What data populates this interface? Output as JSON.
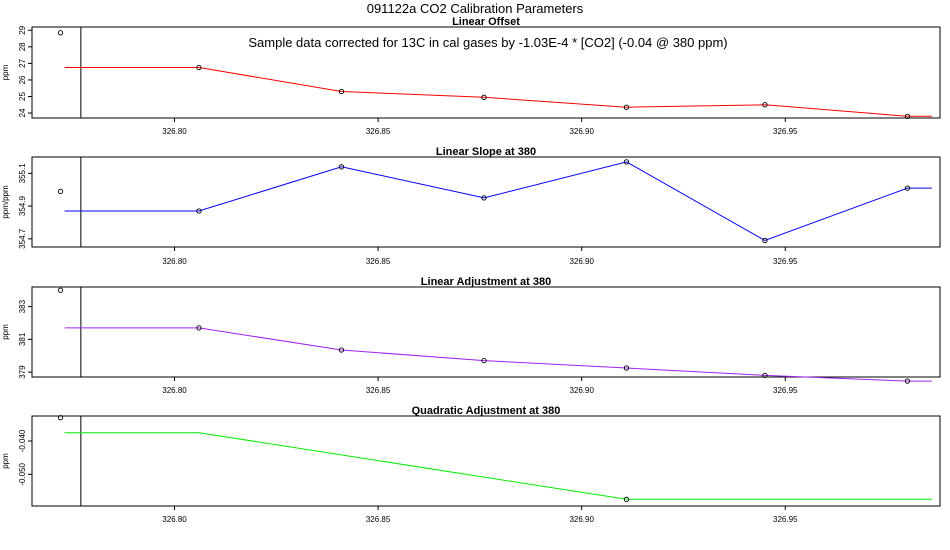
{
  "figure": {
    "title": "091122a   CO2 Calibration Parameters"
  },
  "chart_data": [
    {
      "type": "line",
      "title": "Linear Offset",
      "annotation": "Sample data corrected for 13C in cal gases by -1.03E-4 * [CO2] (-0.04 @ 380 ppm)",
      "ylabel": "ppm",
      "color": "#ff0000",
      "xlim": [
        326.765,
        326.988
      ],
      "ylim": [
        23.7,
        29.2
      ],
      "yticks": [
        24,
        25,
        26,
        27,
        28,
        29
      ],
      "xticks": [
        326.8,
        326.85,
        326.9,
        326.95
      ],
      "xtick_labels": [
        "326.80",
        "326.85",
        "326.90",
        "326.95"
      ],
      "vline": 326.777,
      "line_x": [
        326.773,
        326.806,
        326.841,
        326.876,
        326.911,
        326.945,
        326.98,
        326.986
      ],
      "line_y": [
        26.75,
        26.75,
        25.3,
        24.95,
        24.35,
        24.5,
        23.8,
        23.8
      ],
      "points_x": [
        326.772,
        326.806,
        326.841,
        326.876,
        326.911,
        326.945,
        326.98
      ],
      "points_y": [
        28.85,
        26.75,
        25.3,
        24.95,
        24.35,
        24.5,
        23.8
      ]
    },
    {
      "type": "line",
      "title": "Linear Slope at 380",
      "ylabel": "ppm/ppm",
      "color": "#0000ff",
      "xlim": [
        326.765,
        326.988
      ],
      "ylim": [
        354.65,
        355.2
      ],
      "yticks": [
        354.7,
        354.9,
        355.1
      ],
      "xticks": [
        326.8,
        326.85,
        326.9,
        326.95
      ],
      "xtick_labels": [
        "326.80",
        "326.85",
        "326.90",
        "326.95"
      ],
      "vline": 326.777,
      "line_x": [
        326.773,
        326.806,
        326.841,
        326.876,
        326.911,
        326.945,
        326.98,
        326.986
      ],
      "line_y": [
        354.87,
        354.87,
        355.14,
        354.95,
        355.17,
        354.69,
        355.01,
        355.01
      ],
      "points_x": [
        326.772,
        326.806,
        326.841,
        326.876,
        326.911,
        326.945,
        326.98
      ],
      "points_y": [
        354.99,
        354.87,
        355.14,
        354.95,
        355.17,
        354.69,
        355.01
      ]
    },
    {
      "type": "line",
      "title": "Linear Adjustment at 380",
      "ylabel": "ppm",
      "color": "#a020f0",
      "xlim": [
        326.765,
        326.988
      ],
      "ylim": [
        378.7,
        384.2
      ],
      "yticks": [
        379,
        381,
        383
      ],
      "xticks": [
        326.8,
        326.85,
        326.9,
        326.95
      ],
      "xtick_labels": [
        "326.80",
        "326.85",
        "326.90",
        "326.95"
      ],
      "vline": 326.777,
      "line_x": [
        326.773,
        326.806,
        326.841,
        326.876,
        326.911,
        326.945,
        326.98,
        326.986
      ],
      "line_y": [
        381.7,
        381.7,
        380.35,
        379.7,
        379.25,
        378.8,
        378.45,
        378.45
      ],
      "points_x": [
        326.772,
        326.806,
        326.841,
        326.876,
        326.911,
        326.945,
        326.98
      ],
      "points_y": [
        384.0,
        381.7,
        380.35,
        379.7,
        379.25,
        378.8,
        378.45
      ]
    },
    {
      "type": "line",
      "title": "Quadratic Adjustment at 380",
      "ylabel": "ppm",
      "color": "#00ee00",
      "xlim": [
        326.765,
        326.988
      ],
      "ylim": [
        -0.0595,
        -0.0325
      ],
      "yticks": [
        -0.04,
        -0.05
      ],
      "xticks": [
        326.8,
        326.85,
        326.9,
        326.95
      ],
      "xtick_labels": [
        "326.80",
        "326.85",
        "326.90",
        "326.95"
      ],
      "ytick_labels": [
        "-0.040",
        "-0.050"
      ],
      "vline": 326.777,
      "line_x": [
        326.773,
        326.806,
        326.911,
        326.986
      ],
      "line_y": [
        -0.0375,
        -0.0375,
        -0.0575,
        -0.0575
      ],
      "points_x": [
        326.772,
        326.911
      ],
      "points_y": [
        -0.033,
        -0.0575
      ]
    }
  ]
}
